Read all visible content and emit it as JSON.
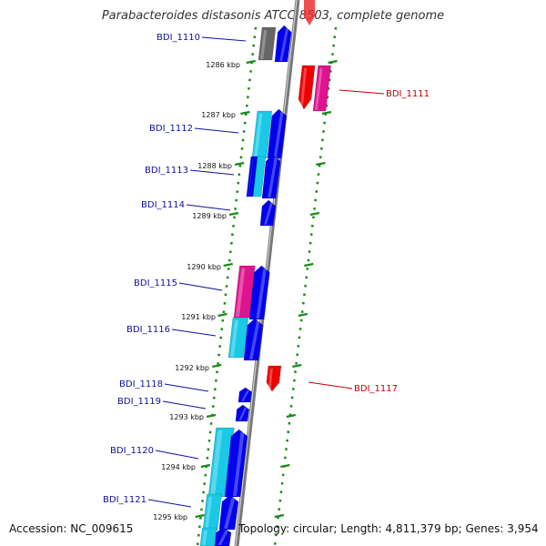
{
  "title": "Parabacteroides distasonis ATCC 8503, complete genome",
  "footer": {
    "accession": "Accession: NC_009615",
    "topology": "Topology: circular; Length: 4,811,379 bp; Genes: 3,954"
  },
  "colors": {
    "backbone": "#888888",
    "tick": "#1a8a1a",
    "forward_label": "#1010a0",
    "reverse_label": "#c00000",
    "blue": "#0000ee",
    "cyan": "#19c9e6",
    "magenta": "#e0128e",
    "red": "#ee0000",
    "gray": "#666666"
  },
  "kbp_markers": [
    {
      "label": "1286 kbp"
    },
    {
      "label": "1287 kbp"
    },
    {
      "label": "1288 kbp"
    },
    {
      "label": "1289 kbp"
    },
    {
      "label": "1290 kbp"
    },
    {
      "label": "1291 kbp"
    },
    {
      "label": "1292 kbp"
    },
    {
      "label": "1293 kbp"
    },
    {
      "label": "1294 kbp"
    },
    {
      "label": "1295 kbp"
    }
  ],
  "genes": [
    {
      "name": "BDI_1110",
      "strand": "forward"
    },
    {
      "name": "BDI_1111",
      "strand": "reverse"
    },
    {
      "name": "BDI_1112",
      "strand": "forward"
    },
    {
      "name": "BDI_1113",
      "strand": "forward"
    },
    {
      "name": "BDI_1114",
      "strand": "forward"
    },
    {
      "name": "BDI_1115",
      "strand": "forward"
    },
    {
      "name": "BDI_1116",
      "strand": "forward"
    },
    {
      "name": "BDI_1117",
      "strand": "reverse"
    },
    {
      "name": "BDI_1118",
      "strand": "forward"
    },
    {
      "name": "BDI_1119",
      "strand": "forward"
    },
    {
      "name": "BDI_1120",
      "strand": "forward"
    },
    {
      "name": "BDI_1121",
      "strand": "forward"
    }
  ]
}
